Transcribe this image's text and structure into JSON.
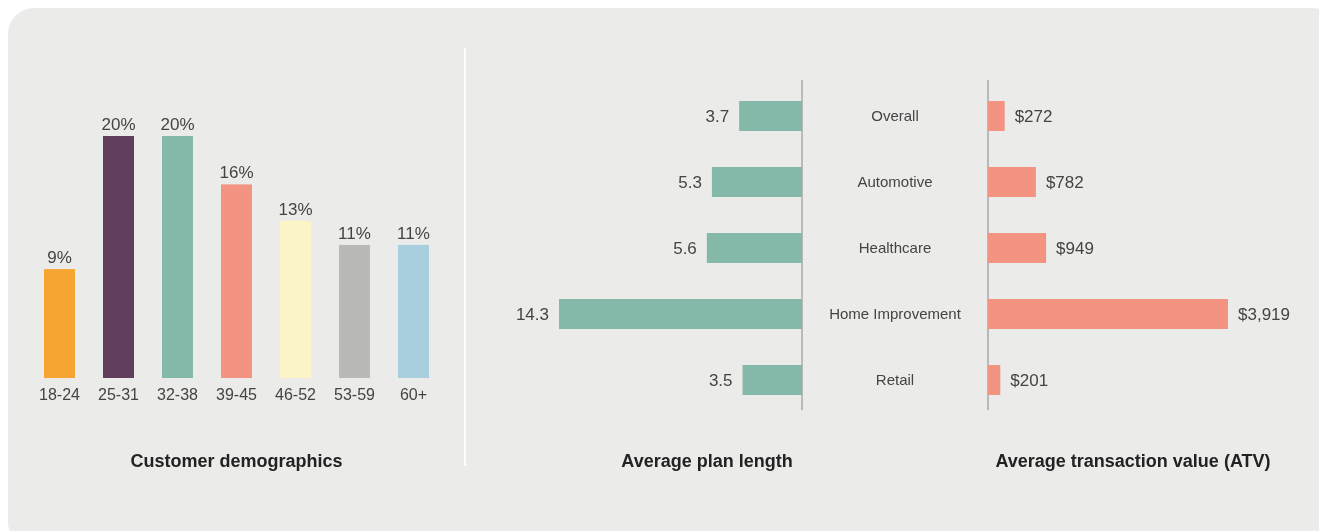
{
  "chart_data": [
    {
      "type": "bar",
      "title": "Customer demographics",
      "categories": [
        "18-24",
        "25-31",
        "32-38",
        "39-45",
        "46-52",
        "53-59",
        "60+"
      ],
      "values": [
        9,
        20,
        20,
        16,
        13,
        11,
        11
      ],
      "colors": [
        "#f6a530",
        "#613d5e",
        "#84b8a8",
        "#f39482",
        "#faf4c6",
        "#b9b9b7",
        "#a9cedd"
      ],
      "value_labels": [
        "9%",
        "20%",
        "20%",
        "16%",
        "13%",
        "11%",
        "11%"
      ]
    },
    {
      "type": "bar",
      "orientation": "horizontal",
      "title": "Average plan length",
      "categories": [
        "Overall",
        "Automotive",
        "Healthcare",
        "Home Improvement",
        "Retail"
      ],
      "values": [
        3.7,
        5.3,
        5.6,
        14.3,
        3.5
      ],
      "color": "#84b8a8",
      "data_labels": true
    },
    {
      "type": "bar",
      "orientation": "horizontal",
      "title": "Average transaction value (ATV)",
      "categories": [
        "Overall",
        "Automotive",
        "Healthcare",
        "Home Improvement",
        "Retail"
      ],
      "values": [
        272,
        782,
        949,
        3919,
        201
      ],
      "color": "#f39482",
      "value_labels": [
        "$272",
        "$782",
        "$949",
        "$3,919",
        "$201"
      ],
      "tick_labels": false
    }
  ]
}
